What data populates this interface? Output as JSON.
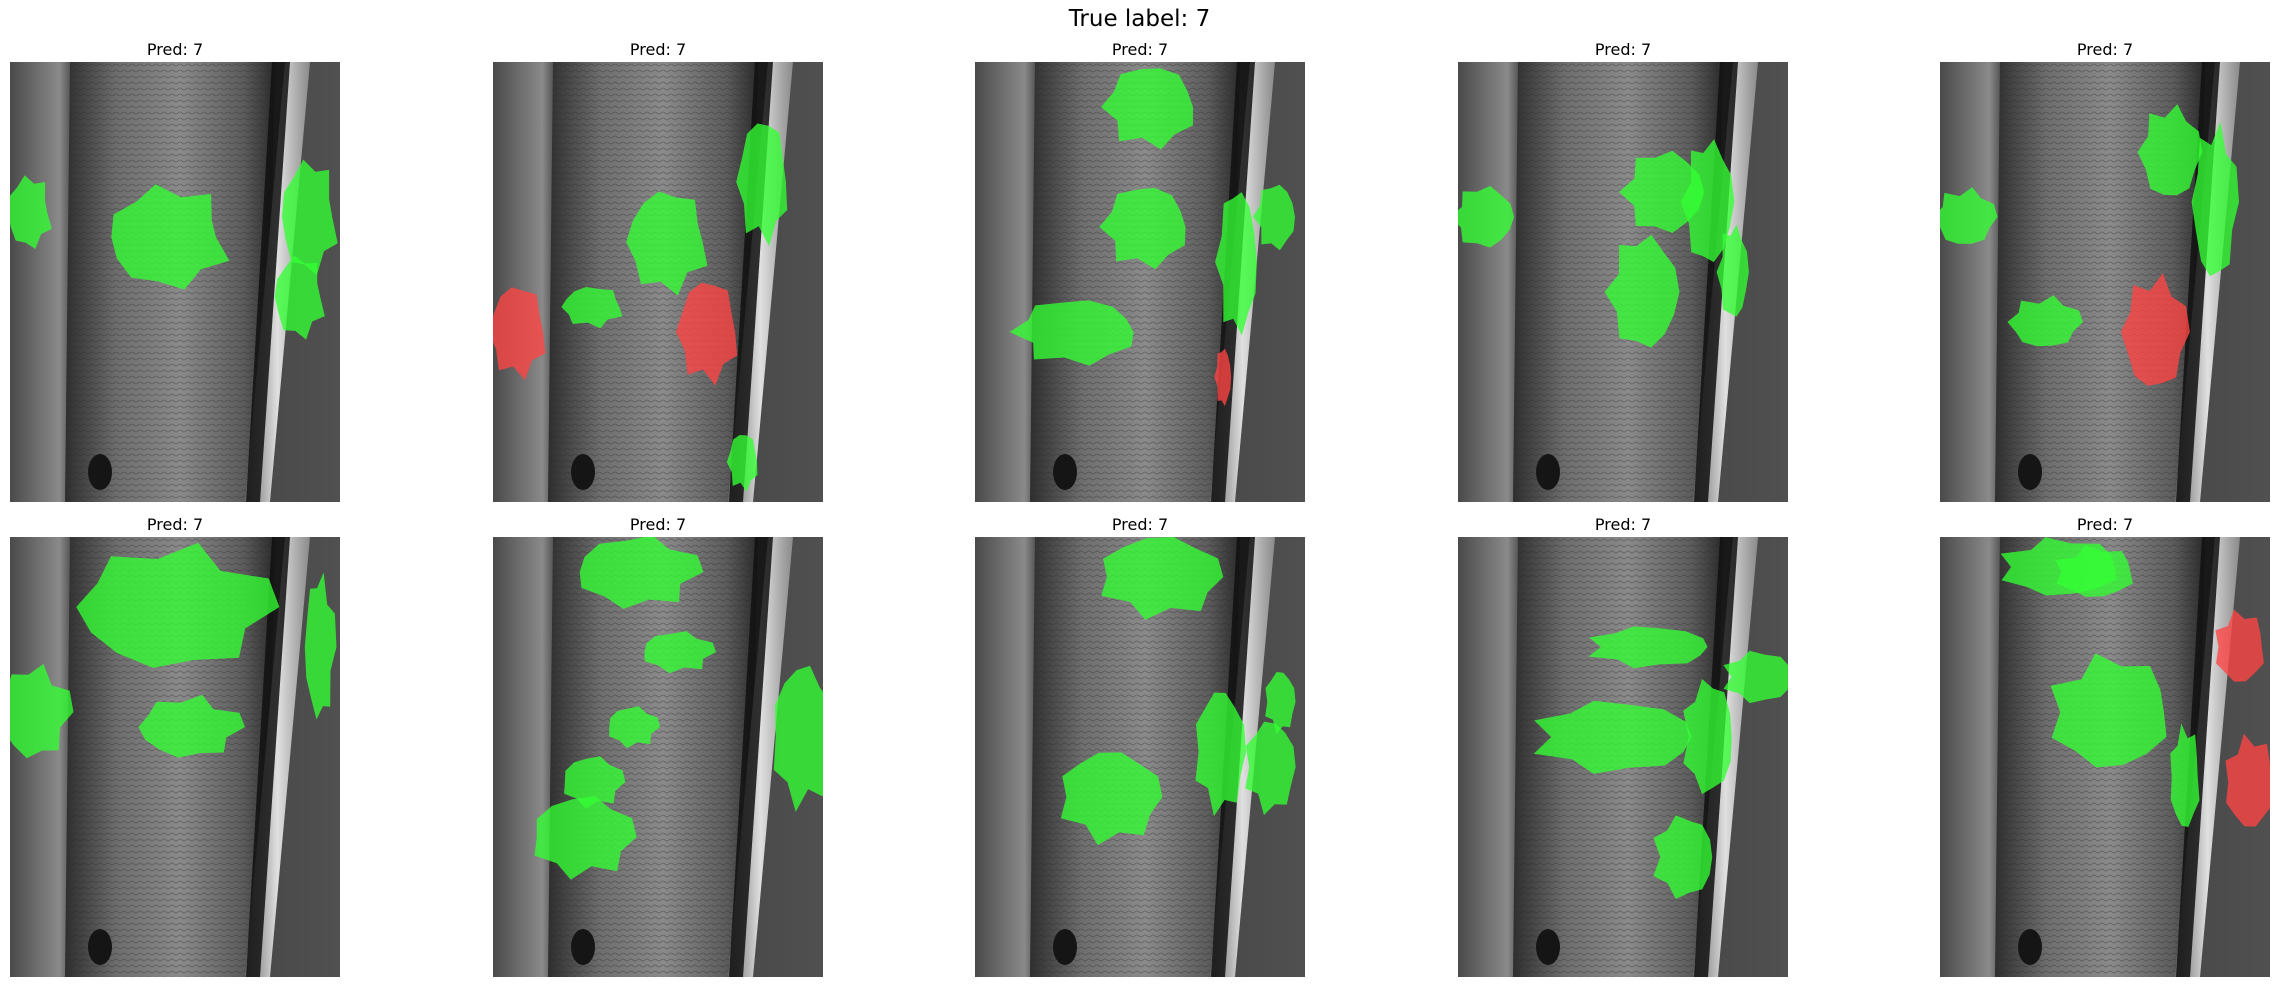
{
  "figure": {
    "title": "True label: 7",
    "panels": [
      {
        "title": "Pred: 7"
      },
      {
        "title": "Pred: 7"
      },
      {
        "title": "Pred: 7"
      },
      {
        "title": "Pred: 7"
      },
      {
        "title": "Pred: 7"
      },
      {
        "title": "Pred: 7"
      },
      {
        "title": "Pred: 7"
      },
      {
        "title": "Pred: 7"
      },
      {
        "title": "Pred: 7"
      },
      {
        "title": "Pred: 7"
      }
    ]
  },
  "colors": {
    "positive_overlay": "#33ff33",
    "negative_overlay": "#ff4444",
    "bark_dark": "#3c3c3c",
    "bark_light": "#9a9a9a"
  }
}
